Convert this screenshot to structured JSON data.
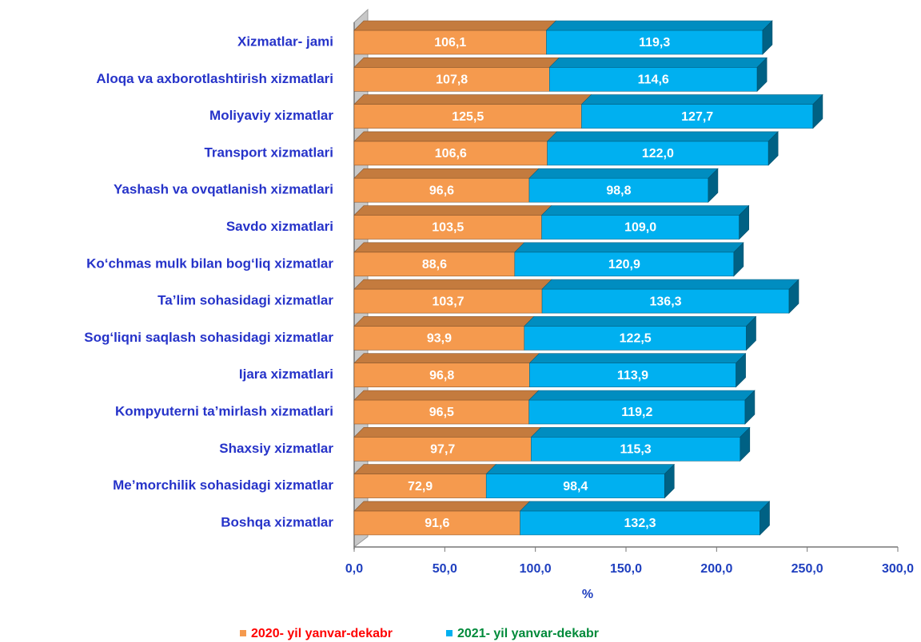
{
  "chart_data": {
    "type": "stacked-bar-horizontal",
    "categories": [
      "Xizmatlar- jami",
      "Aloqa va axborotlashtirish xizmatlari",
      "Moliyaviy xizmatlar",
      "Transport xizmatlari",
      "Yashash va ovqatlanish xizmatlari",
      "Savdo xizmatlari",
      "Ko‘chmas mulk bilan bog‘liq xizmatlar",
      "Ta’lim sohasidagi xizmatlar",
      "Sog‘liqni saqlash sohasidagi xizmatlar",
      "Ijara xizmatlari",
      "Kompyuterni ta’mirlash xizmatlari",
      "Shaxsiy xizmatlar",
      "Me’morchilik sohasidagi xizmatlar",
      "Boshqa xizmatlar"
    ],
    "series": [
      {
        "name": "2020- yil yanvar-dekabr",
        "color": "#f59a4e",
        "values": [
          106.1,
          107.8,
          125.5,
          106.6,
          96.6,
          103.5,
          88.6,
          103.7,
          93.9,
          96.8,
          96.5,
          97.7,
          72.9,
          91.6
        ],
        "value_labels": [
          "106,1",
          "107,8",
          "125,5",
          "106,6",
          "96,6",
          "103,5",
          "88,6",
          "103,7",
          "93,9",
          "96,8",
          "96,5",
          "97,7",
          "72,9",
          "91,6"
        ]
      },
      {
        "name": "2021- yil yanvar-dekabr",
        "color": "#00b0f0",
        "values": [
          119.3,
          114.6,
          127.7,
          122.0,
          98.8,
          109.0,
          120.9,
          136.3,
          122.5,
          113.9,
          119.2,
          115.3,
          98.4,
          132.3
        ],
        "value_labels": [
          "119,3",
          "114,6",
          "127,7",
          "122,0",
          "98,8",
          "109,0",
          "120,9",
          "136,3",
          "122,5",
          "113,9",
          "119,2",
          "115,3",
          "98,4",
          "132,3"
        ]
      }
    ],
    "xlabel": "%",
    "xlim": [
      0,
      300
    ],
    "xticks": [
      {
        "value": 0,
        "label": "0,0"
      },
      {
        "value": 50,
        "label": "50,0"
      },
      {
        "value": 100,
        "label": "100,0"
      },
      {
        "value": 150,
        "label": "150,0"
      },
      {
        "value": 200,
        "label": "200,0"
      },
      {
        "value": 250,
        "label": "250,0"
      },
      {
        "value": 300,
        "label": "300,0"
      }
    ],
    "legend": "bottom"
  }
}
